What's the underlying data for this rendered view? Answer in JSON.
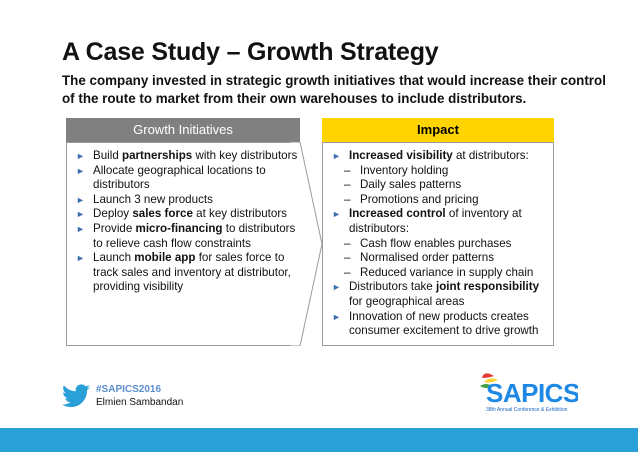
{
  "slide": {
    "title": "A Case Study – Growth Strategy",
    "subtitle": "The company invested in strategic growth initiatives that would increase their control of the route to market from their own warehouses to include distributors."
  },
  "left": {
    "header": "Growth Initiatives",
    "items": [
      [
        {
          "t": "Build "
        },
        {
          "t": "partnerships",
          "b": true
        },
        {
          "t": " with key distributors"
        }
      ],
      [
        {
          "t": "Allocate geographical locations to distributors"
        }
      ],
      [
        {
          "t": "Launch 3 new products"
        }
      ],
      [
        {
          "t": "Deploy "
        },
        {
          "t": "sales force",
          "b": true
        },
        {
          "t": " at key distributors"
        }
      ],
      [
        {
          "t": "Provide "
        },
        {
          "t": "micro-financing",
          "b": true
        },
        {
          "t": " to distributors to relieve cash flow constraints"
        }
      ],
      [
        {
          "t": "Launch "
        },
        {
          "t": "mobile app",
          "b": true
        },
        {
          "t": " for sales force to track sales and inventory at distributor, providing visibility"
        }
      ]
    ]
  },
  "right": {
    "header": "Impact",
    "items": [
      {
        "parts": [
          {
            "t": "Increased visibility",
            "b": true
          },
          {
            "t": " at distributors:"
          }
        ],
        "sub": [
          "Inventory holding",
          "Daily sales patterns",
          "Promotions and pricing"
        ]
      },
      {
        "parts": [
          {
            "t": "Increased control",
            "b": true
          },
          {
            "t": " of inventory at distributors:"
          }
        ],
        "sub": [
          "Cash flow enables purchases",
          "Normalised order patterns",
          "Reduced variance in supply chain"
        ]
      },
      {
        "parts": [
          {
            "t": "Distributors take "
          },
          {
            "t": "joint responsibility",
            "b": true
          },
          {
            "t": " for geographical areas"
          }
        ],
        "sub": []
      },
      {
        "parts": [
          {
            "t": "Innovation of new products creates consumer excitement to drive growth"
          }
        ],
        "sub": []
      }
    ]
  },
  "footer": {
    "hashtag": "#SAPICS2016",
    "author": "Elmien Sambandan",
    "logo_text": "SAPICS",
    "logo_tagline": "38th Annual Conference & Exhibition"
  },
  "colors": {
    "accent_blue": "#2aa0d8",
    "impact_yellow": "#ffd400",
    "initiatives_gray": "#808080"
  },
  "icons": {
    "bullet": "►",
    "dash": "–"
  }
}
